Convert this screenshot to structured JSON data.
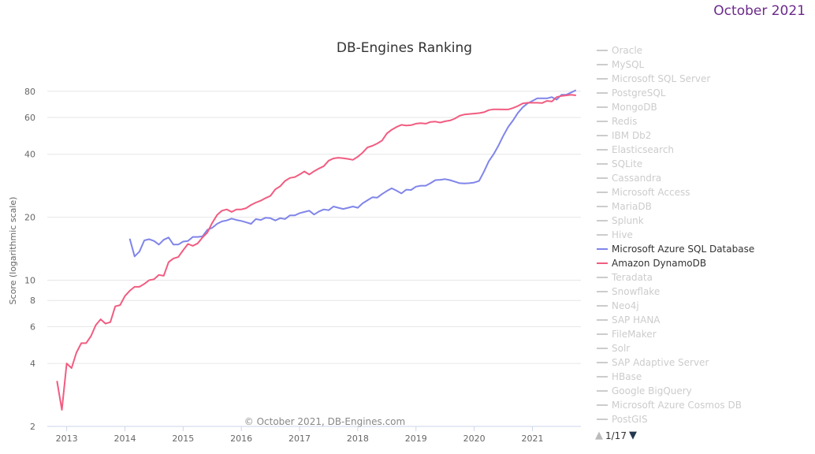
{
  "month_label": "October 2021",
  "chart_data": {
    "type": "line",
    "title": "DB-Engines Ranking",
    "ylabel": "Score (logarithmic scale)",
    "xlabel": "",
    "yscale": "log",
    "ylim": [
      2,
      95
    ],
    "xlim": [
      "2012-09",
      "2021-11"
    ],
    "y_ticks": [
      "2",
      "4",
      "6",
      "8",
      "10",
      "20",
      "40",
      "60",
      "80"
    ],
    "x_ticks": [
      "2013",
      "2014",
      "2015",
      "2016",
      "2017",
      "2018",
      "2019",
      "2020",
      "2021"
    ],
    "grid": true,
    "legend_placement": "right",
    "credits": "© October 2021, DB-Engines.com",
    "series": [
      {
        "name": "Microsoft Azure SQL Database",
        "color": "#8085e9",
        "x": [
          "2014-02",
          "2014-03",
          "2014-04",
          "2014-05",
          "2014-06",
          "2014-07",
          "2014-08",
          "2014-09",
          "2014-10",
          "2014-11",
          "2014-12",
          "2015-01",
          "2015-02",
          "2015-03",
          "2015-04",
          "2015-05",
          "2015-06",
          "2015-07",
          "2015-08",
          "2015-09",
          "2015-10",
          "2015-11",
          "2015-12",
          "2016-01",
          "2016-02",
          "2016-03",
          "2016-04",
          "2016-05",
          "2016-06",
          "2016-07",
          "2016-08",
          "2016-09",
          "2016-10",
          "2016-11",
          "2016-12",
          "2017-01",
          "2017-02",
          "2017-03",
          "2017-04",
          "2017-05",
          "2017-06",
          "2017-07",
          "2017-08",
          "2017-09",
          "2017-10",
          "2017-11",
          "2017-12",
          "2018-01",
          "2018-02",
          "2018-03",
          "2018-04",
          "2018-05",
          "2018-06",
          "2018-07",
          "2018-08",
          "2018-09",
          "2018-10",
          "2018-11",
          "2018-12",
          "2019-01",
          "2019-02",
          "2019-03",
          "2019-04",
          "2019-05",
          "2019-06",
          "2019-07",
          "2019-08",
          "2019-09",
          "2019-10",
          "2019-11",
          "2019-12",
          "2020-01",
          "2020-02",
          "2020-03",
          "2020-04",
          "2020-05",
          "2020-06",
          "2020-07",
          "2020-08",
          "2020-09",
          "2020-10",
          "2020-11",
          "2020-12",
          "2021-01",
          "2021-02",
          "2021-03",
          "2021-04",
          "2021-05",
          "2021-06",
          "2021-07",
          "2021-08",
          "2021-09",
          "2021-10"
        ],
        "values": [
          15.8,
          13.0,
          13.7,
          15.5,
          15.7,
          15.4,
          14.8,
          15.6,
          16.0,
          14.8,
          14.8,
          15.3,
          15.4,
          16.1,
          16.1,
          16.2,
          17.4,
          17.8,
          18.6,
          19.1,
          19.3,
          19.7,
          19.4,
          19.2,
          18.9,
          18.6,
          19.6,
          19.4,
          19.9,
          19.8,
          19.3,
          19.8,
          19.6,
          20.4,
          20.4,
          20.9,
          21.2,
          21.5,
          20.6,
          21.3,
          21.8,
          21.6,
          22.5,
          22.2,
          21.9,
          22.2,
          22.5,
          22.2,
          23.3,
          24.1,
          24.9,
          24.8,
          25.8,
          26.7,
          27.5,
          26.8,
          26.0,
          27.1,
          27.0,
          28.0,
          28.3,
          28.3,
          29.1,
          30.1,
          30.2,
          30.4,
          30.1,
          29.6,
          29.1,
          29.0,
          29.1,
          29.3,
          29.8,
          33.0,
          37.0,
          40.0,
          44.0,
          49.0,
          54.0,
          58.0,
          63.0,
          67.0,
          70.0,
          72.0,
          74.0,
          74.0,
          74.0,
          75.0,
          73.0,
          77.0,
          77.0,
          79.0,
          81.0
        ]
      },
      {
        "name": "Amazon DynamoDB",
        "color": "#f15c80",
        "x": [
          "2012-11",
          "2012-12",
          "2013-01",
          "2013-02",
          "2013-03",
          "2013-04",
          "2013-05",
          "2013-06",
          "2013-07",
          "2013-08",
          "2013-09",
          "2013-10",
          "2013-11",
          "2013-12",
          "2014-01",
          "2014-02",
          "2014-03",
          "2014-04",
          "2014-05",
          "2014-06",
          "2014-07",
          "2014-08",
          "2014-09",
          "2014-10",
          "2014-11",
          "2014-12",
          "2015-01",
          "2015-02",
          "2015-03",
          "2015-04",
          "2015-05",
          "2015-06",
          "2015-07",
          "2015-08",
          "2015-09",
          "2015-10",
          "2015-11",
          "2015-12",
          "2016-01",
          "2016-02",
          "2016-03",
          "2016-04",
          "2016-05",
          "2016-06",
          "2016-07",
          "2016-08",
          "2016-09",
          "2016-10",
          "2016-11",
          "2016-12",
          "2017-01",
          "2017-02",
          "2017-03",
          "2017-04",
          "2017-05",
          "2017-06",
          "2017-07",
          "2017-08",
          "2017-09",
          "2017-10",
          "2017-11",
          "2017-12",
          "2018-01",
          "2018-02",
          "2018-03",
          "2018-04",
          "2018-05",
          "2018-06",
          "2018-07",
          "2018-08",
          "2018-09",
          "2018-10",
          "2018-11",
          "2018-12",
          "2019-01",
          "2019-02",
          "2019-03",
          "2019-04",
          "2019-05",
          "2019-06",
          "2019-07",
          "2019-08",
          "2019-09",
          "2019-10",
          "2019-11",
          "2019-12",
          "2020-01",
          "2020-02",
          "2020-03",
          "2020-04",
          "2020-05",
          "2020-06",
          "2020-07",
          "2020-08",
          "2020-09",
          "2020-10",
          "2020-11",
          "2020-12",
          "2021-01",
          "2021-02",
          "2021-03",
          "2021-04",
          "2021-05",
          "2021-06",
          "2021-07",
          "2021-08",
          "2021-09",
          "2021-10"
        ],
        "values": [
          3.3,
          2.4,
          4.0,
          3.8,
          4.5,
          5.0,
          5.0,
          5.4,
          6.1,
          6.5,
          6.2,
          6.3,
          7.5,
          7.6,
          8.4,
          8.9,
          9.3,
          9.3,
          9.6,
          10.0,
          10.1,
          10.6,
          10.5,
          12.2,
          12.7,
          12.9,
          13.9,
          14.9,
          14.6,
          15.0,
          16.0,
          16.9,
          18.8,
          20.5,
          21.5,
          21.8,
          21.2,
          21.8,
          21.8,
          22.1,
          22.9,
          23.5,
          24.0,
          24.7,
          25.3,
          27.2,
          28.1,
          29.8,
          30.8,
          31.1,
          32.0,
          33.1,
          32.0,
          33.2,
          34.2,
          35.1,
          37.3,
          38.2,
          38.5,
          38.3,
          38.0,
          37.6,
          38.9,
          40.7,
          43.1,
          43.9,
          45.0,
          46.5,
          50.3,
          52.4,
          54.0,
          55.3,
          54.9,
          55.1,
          56.0,
          56.3,
          56.0,
          57.1,
          57.3,
          56.7,
          57.5,
          58.0,
          59.2,
          61.1,
          62.0,
          62.3,
          62.6,
          62.9,
          63.5,
          65.0,
          65.6,
          65.6,
          65.5,
          65.5,
          66.5,
          68.0,
          70.0,
          70.5,
          70.5,
          70.5,
          70.3,
          72.0,
          71.5,
          75.0,
          76.0,
          76.5,
          77.0,
          76.5
        ]
      }
    ],
    "legend_items": [
      {
        "name": "Oracle",
        "active": false
      },
      {
        "name": "MySQL",
        "active": false
      },
      {
        "name": "Microsoft SQL Server",
        "active": false
      },
      {
        "name": "PostgreSQL",
        "active": false
      },
      {
        "name": "MongoDB",
        "active": false
      },
      {
        "name": "Redis",
        "active": false
      },
      {
        "name": "IBM Db2",
        "active": false
      },
      {
        "name": "Elasticsearch",
        "active": false
      },
      {
        "name": "SQLite",
        "active": false
      },
      {
        "name": "Cassandra",
        "active": false
      },
      {
        "name": "Microsoft Access",
        "active": false
      },
      {
        "name": "MariaDB",
        "active": false
      },
      {
        "name": "Splunk",
        "active": false
      },
      {
        "name": "Hive",
        "active": false
      },
      {
        "name": "Microsoft Azure SQL Database",
        "active": true,
        "color": "#8085e9"
      },
      {
        "name": "Amazon DynamoDB",
        "active": true,
        "color": "#f15c80"
      },
      {
        "name": "Teradata",
        "active": false
      },
      {
        "name": "Snowflake",
        "active": false
      },
      {
        "name": "Neo4j",
        "active": false
      },
      {
        "name": "SAP HANA",
        "active": false
      },
      {
        "name": "FileMaker",
        "active": false
      },
      {
        "name": "Solr",
        "active": false
      },
      {
        "name": "SAP Adaptive Server",
        "active": false
      },
      {
        "name": "HBase",
        "active": false
      },
      {
        "name": "Google BigQuery",
        "active": false
      },
      {
        "name": "Microsoft Azure Cosmos DB",
        "active": false
      },
      {
        "name": "PostGIS",
        "active": false
      }
    ],
    "legend_page": "1/17"
  },
  "icons": {
    "page_up": "triangle-up-icon",
    "page_down": "triangle-down-icon"
  }
}
